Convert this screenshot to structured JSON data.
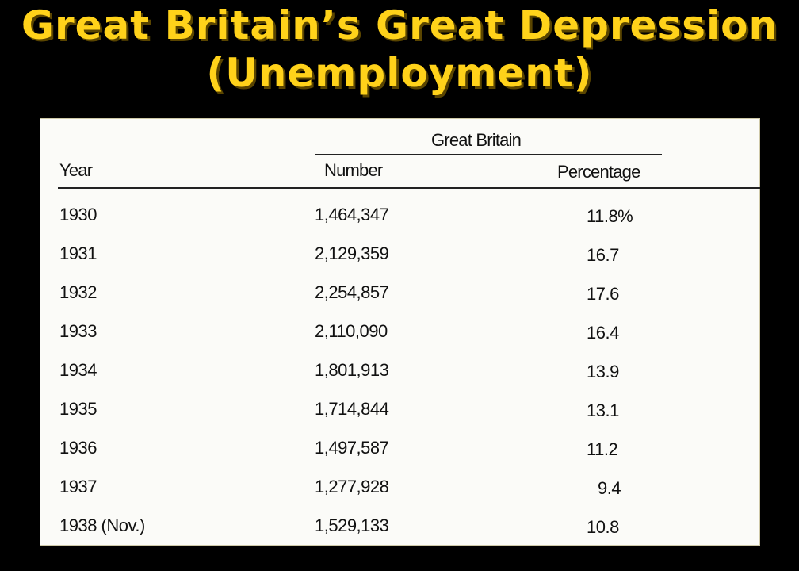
{
  "title": {
    "line1": "Great Britain’s Great Depression",
    "line2": "(Unemployment)"
  },
  "colors": {
    "background": "#000000",
    "title": "#ffd21a",
    "table_paper": "#fbfbf8"
  },
  "table": {
    "group_header": "Great Britain",
    "columns": {
      "year": "Year",
      "number": "Number",
      "percentage": "Percentage"
    },
    "rows": [
      {
        "year": "1930",
        "number": "1,464,347",
        "percentage": "11.8%"
      },
      {
        "year": "1931",
        "number": "2,129,359",
        "percentage": "16.7"
      },
      {
        "year": "1932",
        "number": "2,254,857",
        "percentage": "17.6"
      },
      {
        "year": "1933",
        "number": "2,110,090",
        "percentage": "16.4"
      },
      {
        "year": "1934",
        "number": "1,801,913",
        "percentage": "13.9"
      },
      {
        "year": "1935",
        "number": "1,714,844",
        "percentage": "13.1"
      },
      {
        "year": "1936",
        "number": "1,497,587",
        "percentage": "11.2"
      },
      {
        "year": "1937",
        "number": "1,277,928",
        "percentage": "9.4"
      },
      {
        "year": "1938 (Nov.)",
        "number": "1,529,133",
        "percentage": "10.8"
      }
    ]
  }
}
